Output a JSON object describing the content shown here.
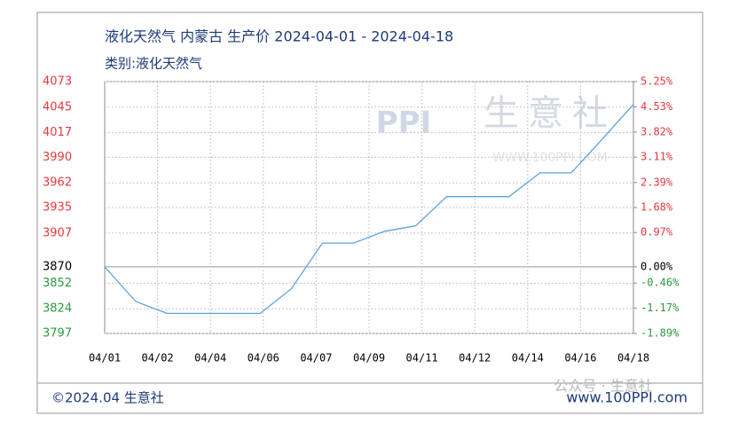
{
  "chart_data": {
    "type": "line",
    "title": "液化天然气 内蒙古 生产价 2024-04-01 - 2024-04-18",
    "subtitle": "类别:液化天然气",
    "xticks": [
      "04/01",
      "04/02",
      "04/04",
      "04/06",
      "04/07",
      "04/09",
      "04/11",
      "04/12",
      "04/14",
      "04/16",
      "04/18"
    ],
    "series": [
      {
        "name": "液化天然气",
        "color": "#5ba3dc",
        "values": [
          3870,
          3832,
          3819,
          3819,
          3819,
          3819,
          3846,
          3896,
          3896,
          3909,
          3915,
          3947,
          3947,
          3947,
          3973,
          3973,
          4010,
          4048
        ]
      }
    ],
    "ylim": [
      3797,
      4073
    ],
    "yticks": [
      4073,
      4045,
      4017,
      3990,
      3962,
      3935,
      3907,
      3870,
      3852,
      3824,
      3797
    ],
    "y2lim": [
      -1.89,
      5.25
    ],
    "y2ticks": [
      {
        "value": 5.25,
        "label": "5.25%"
      },
      {
        "value": 4.53,
        "label": "4.53%"
      },
      {
        "value": 3.82,
        "label": "3.82%"
      },
      {
        "value": 3.11,
        "label": "3.11%"
      },
      {
        "value": 2.39,
        "label": "2.39%"
      },
      {
        "value": 1.68,
        "label": "1.68%"
      },
      {
        "value": 0.97,
        "label": "0.97%"
      },
      {
        "value": 0,
        "label": "0.00%"
      },
      {
        "value": -0.46,
        "label": "-0.46%"
      },
      {
        "value": -1.17,
        "label": "-1.17%"
      },
      {
        "value": -1.89,
        "label": "-1.89%"
      }
    ],
    "baseline": 3870,
    "up_color": "#e8383d",
    "down_color": "#2e9a3e",
    "grid": true,
    "watermark": {
      "logo": "PPI",
      "name": "生意社",
      "url": "WWW.100PPI.COM"
    },
    "footer": {
      "copyright": "©2024.04 生意社",
      "site": "www.100PPI.com",
      "overlay": "公众号 · 生意社"
    }
  }
}
